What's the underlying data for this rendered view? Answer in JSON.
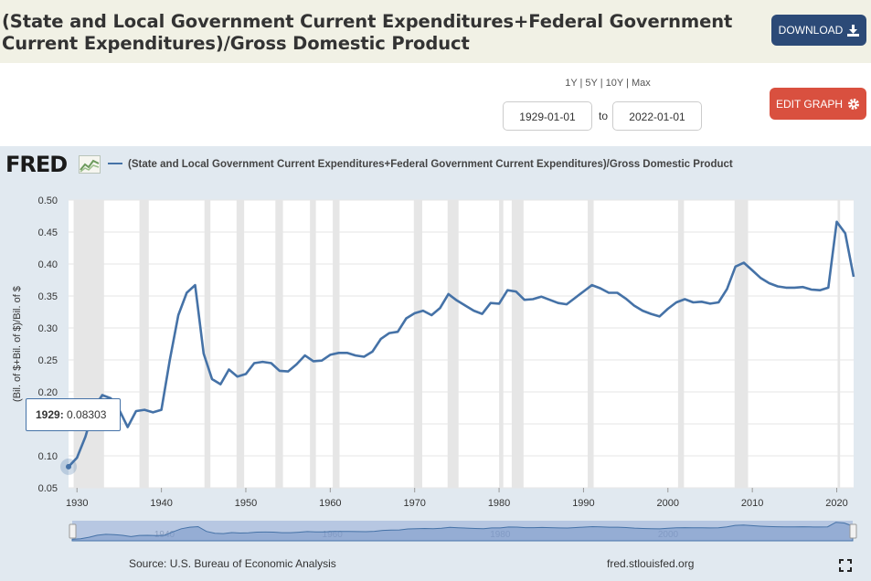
{
  "header": {
    "title": "(State and Local Government Current Expenditures+Federal Government Current Expenditures)/Gross Domestic Product",
    "download_label": "DOWNLOAD"
  },
  "controls": {
    "range_links": "1Y | 5Y | 10Y | Max",
    "start_date": "1929-01-01",
    "to_label": "to",
    "end_date": "2022-01-01",
    "edit_label": "EDIT GRAPH"
  },
  "logo": {
    "text": "FRED"
  },
  "legend": {
    "series_name": "(State and Local Government Current Expenditures+Federal Government Current Expenditures)/Gross Domestic Product"
  },
  "tooltip": {
    "year": "1929:",
    "value": "0.08303"
  },
  "footer": {
    "source": "Source: U.S. Bureau of Economic Analysis",
    "site": "fred.stlouisfed.org"
  },
  "colors": {
    "series": "#4572a7",
    "recession": "#e6e6e6",
    "panel": "#e1e9f0"
  },
  "chart_data": {
    "type": "line",
    "title": "(State and Local Government Current Expenditures+Federal Government Current Expenditures)/Gross Domestic Product",
    "xlabel": "",
    "ylabel": "(Bil. of $+Bil. of $)/Bil. of $",
    "xlim": [
      1929,
      2022
    ],
    "ylim": [
      0.05,
      0.5
    ],
    "y_ticks": [
      "0.05",
      "0.10",
      "0.15",
      "0.20",
      "0.25",
      "0.30",
      "0.35",
      "0.40",
      "0.45",
      "0.50"
    ],
    "x_ticks": [
      "1930",
      "1940",
      "1950",
      "1960",
      "1970",
      "1980",
      "1990",
      "2000",
      "2010",
      "2020"
    ],
    "navigator_labels": [
      "1940",
      "1960",
      "1980",
      "2000"
    ],
    "recessions": [
      [
        1929.6,
        1933.2
      ],
      [
        1937.4,
        1938.5
      ],
      [
        1945.1,
        1945.8
      ],
      [
        1948.9,
        1949.8
      ],
      [
        1953.5,
        1954.4
      ],
      [
        1957.6,
        1958.3
      ],
      [
        1960.3,
        1961.1
      ],
      [
        1969.9,
        1970.9
      ],
      [
        1973.9,
        1975.2
      ],
      [
        1980.0,
        1980.5
      ],
      [
        1981.5,
        1982.9
      ],
      [
        1990.5,
        1991.2
      ],
      [
        2001.2,
        2001.9
      ],
      [
        2007.9,
        2009.5
      ],
      [
        2020.1,
        2020.4
      ]
    ],
    "series": [
      {
        "name": "(State and Local Government Current Expenditures+Federal Government Current Expenditures)/Gross Domestic Product",
        "x": [
          1929,
          1930,
          1931,
          1932,
          1933,
          1934,
          1935,
          1936,
          1937,
          1938,
          1939,
          1940,
          1941,
          1942,
          1943,
          1944,
          1945,
          1946,
          1947,
          1948,
          1949,
          1950,
          1951,
          1952,
          1953,
          1954,
          1955,
          1956,
          1957,
          1958,
          1959,
          1960,
          1961,
          1962,
          1963,
          1964,
          1965,
          1966,
          1967,
          1968,
          1969,
          1970,
          1971,
          1972,
          1973,
          1974,
          1975,
          1976,
          1977,
          1978,
          1979,
          1980,
          1981,
          1982,
          1983,
          1984,
          1985,
          1986,
          1987,
          1988,
          1989,
          1990,
          1991,
          1992,
          1993,
          1994,
          1995,
          1996,
          1997,
          1998,
          1999,
          2000,
          2001,
          2002,
          2003,
          2004,
          2005,
          2006,
          2007,
          2008,
          2009,
          2010,
          2011,
          2012,
          2013,
          2014,
          2015,
          2016,
          2017,
          2018,
          2019,
          2020,
          2021,
          2022
        ],
        "values": [
          0.083,
          0.097,
          0.13,
          0.175,
          0.195,
          0.19,
          0.172,
          0.145,
          0.17,
          0.172,
          0.168,
          0.172,
          0.25,
          0.32,
          0.355,
          0.367,
          0.26,
          0.22,
          0.212,
          0.235,
          0.224,
          0.228,
          0.245,
          0.247,
          0.245,
          0.233,
          0.232,
          0.243,
          0.257,
          0.248,
          0.249,
          0.258,
          0.261,
          0.261,
          0.257,
          0.255,
          0.263,
          0.283,
          0.292,
          0.294,
          0.315,
          0.323,
          0.327,
          0.32,
          0.331,
          0.353,
          0.343,
          0.335,
          0.327,
          0.322,
          0.339,
          0.338,
          0.359,
          0.357,
          0.344,
          0.345,
          0.349,
          0.344,
          0.339,
          0.337,
          0.347,
          0.357,
          0.367,
          0.362,
          0.355,
          0.355,
          0.346,
          0.335,
          0.327,
          0.322,
          0.318,
          0.33,
          0.34,
          0.345,
          0.34,
          0.341,
          0.338,
          0.34,
          0.361,
          0.396,
          0.402,
          0.39,
          0.378,
          0.37,
          0.365,
          0.363,
          0.363,
          0.364,
          0.36,
          0.359,
          0.363,
          0.466,
          0.448,
          0.38
        ]
      }
    ]
  }
}
